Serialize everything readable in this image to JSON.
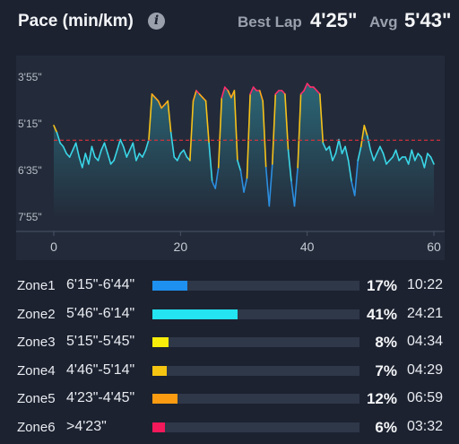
{
  "header": {
    "title": "Pace (min/km)",
    "best_lap_label": "Best Lap",
    "best_lap_value": "4'25\"",
    "avg_label": "Avg",
    "avg_value": "5'43\""
  },
  "chart_data": {
    "type": "line",
    "x": [
      0,
      0.5,
      1,
      1.5,
      2,
      2.5,
      3,
      3.5,
      4,
      4.5,
      5,
      5.5,
      6,
      6.5,
      7,
      7.5,
      8,
      8.5,
      9,
      9.5,
      10,
      10.5,
      11,
      11.5,
      12,
      12.5,
      13,
      13.5,
      14,
      14.5,
      15,
      15.5,
      16,
      16.5,
      17,
      17.5,
      18,
      18.5,
      19,
      19.5,
      20,
      20.5,
      21,
      21.5,
      22,
      22.5,
      23,
      23.5,
      24,
      24.5,
      25,
      25.5,
      26,
      26.5,
      27,
      27.5,
      28,
      28.5,
      29,
      29.5,
      30,
      30.5,
      31,
      31.5,
      32,
      32.5,
      33,
      33.5,
      34,
      34.5,
      35,
      35.5,
      36,
      36.5,
      37,
      37.5,
      38,
      38.5,
      39,
      39.5,
      40,
      40.5,
      41,
      41.5,
      42,
      42.5,
      43,
      43.5,
      44,
      44.5,
      45,
      45.5,
      46,
      46.5,
      47,
      47.5,
      48,
      48.5,
      49,
      49.5,
      50,
      50.5,
      51,
      51.5,
      52,
      52.5,
      53,
      53.5,
      54,
      54.5,
      55,
      55.5,
      56,
      56.5,
      57,
      57.5,
      58,
      58.5,
      59,
      59.5,
      60
    ],
    "y": [
      5.3,
      5.5,
      5.8,
      5.9,
      6.1,
      6.2,
      6.0,
      5.8,
      6.2,
      6.5,
      6.1,
      6.4,
      5.9,
      6.2,
      6.3,
      6.0,
      5.8,
      6.1,
      6.4,
      6.3,
      6.0,
      5.7,
      5.9,
      6.2,
      6.0,
      5.8,
      6.3,
      6.1,
      6.2,
      6.0,
      5.7,
      4.4,
      4.5,
      4.6,
      4.8,
      4.7,
      4.6,
      5.5,
      6.2,
      6.3,
      6.1,
      6.0,
      6.2,
      6.3,
      4.6,
      4.3,
      4.4,
      4.5,
      4.6,
      5.8,
      6.9,
      7.1,
      6.5,
      4.5,
      4.2,
      4.3,
      4.5,
      4.3,
      6.3,
      6.6,
      7.2,
      6.8,
      4.4,
      4.2,
      4.3,
      4.3,
      4.6,
      6.5,
      7.6,
      6.4,
      4.4,
      4.3,
      4.3,
      4.4,
      6.0,
      6.9,
      7.6,
      6.5,
      4.4,
      4.3,
      4.1,
      4.2,
      4.2,
      4.3,
      4.4,
      5.8,
      6.0,
      5.9,
      6.3,
      6.1,
      5.7,
      6.1,
      5.9,
      6.3,
      6.9,
      7.3,
      6.3,
      5.9,
      5.3,
      5.6,
      6.0,
      6.3,
      6.1,
      5.9,
      6.1,
      6.4,
      6.3,
      6.2,
      6.0,
      6.3,
      6.2,
      6.2,
      6.4,
      6.0,
      6.3,
      6.1,
      6.2,
      6.5,
      6.1,
      6.2,
      6.4
    ],
    "y_ticks": [
      "3'55\"",
      "5'15\"",
      "6'35\"",
      "7'55\""
    ],
    "x_ticks": [
      "0",
      "20",
      "40",
      "60"
    ],
    "avg_line": 5.72,
    "xlim": [
      0,
      60
    ],
    "ylim_top": "3'55\"",
    "ylim_bottom": "7'55\"",
    "colors": {
      "fast": "#ff2d6b",
      "tempo": "#ffa81a",
      "threshold": "#f5c21a",
      "easy": "#3ad7e8",
      "slow": "#2b8fe0",
      "avg_line": "#e0303a"
    }
  },
  "zones": [
    {
      "name": "Zone1",
      "range": "6'15\"-6'44\"",
      "percent": "17%",
      "fraction": 0.17,
      "time": "10:22",
      "color": "#1e90ef"
    },
    {
      "name": "Zone2",
      "range": "5'46\"-6'14\"",
      "percent": "41%",
      "fraction": 0.41,
      "time": "24:21",
      "color": "#23e4f0"
    },
    {
      "name": "Zone3",
      "range": "5'15\"-5'45\"",
      "percent": "8%",
      "fraction": 0.08,
      "time": "04:34",
      "color": "#f7ec0a"
    },
    {
      "name": "Zone4",
      "range": "4'46\"-5'14\"",
      "percent": "7%",
      "fraction": 0.07,
      "time": "04:29",
      "color": "#f6c511"
    },
    {
      "name": "Zone5",
      "range": "4'23\"-4'45\"",
      "percent": "12%",
      "fraction": 0.12,
      "time": "06:59",
      "color": "#fb9b12"
    },
    {
      "name": "Zone6",
      "range": ">4'23\"",
      "percent": "6%",
      "fraction": 0.06,
      "time": "03:32",
      "color": "#f3195a"
    }
  ]
}
